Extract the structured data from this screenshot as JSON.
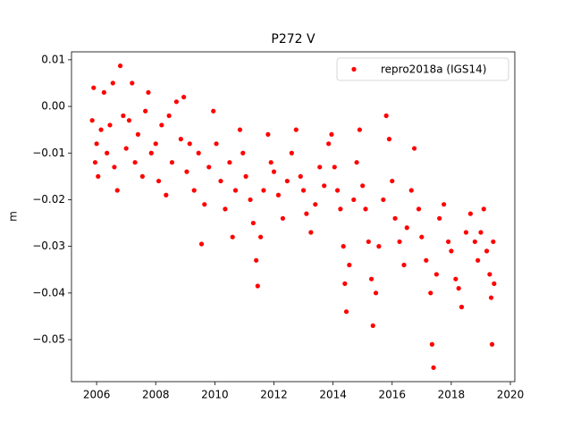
{
  "chart_data": {
    "type": "scatter",
    "title": "P272 V",
    "y_label": "m",
    "xlim": [
      2005.15,
      2020.15
    ],
    "xticks": [
      2006,
      2008,
      2010,
      2012,
      2014,
      2016,
      2018,
      2020
    ],
    "ylim": [
      -0.059,
      0.0117
    ],
    "yticks": [
      {
        "value": 0.01,
        "label": "0.01"
      },
      {
        "value": 0,
        "label": "0.00"
      },
      {
        "value": -0.01,
        "label": "−0.01"
      },
      {
        "value": -0.02,
        "label": "−0.02"
      },
      {
        "value": -0.03,
        "label": "−0.03"
      },
      {
        "value": -0.04,
        "label": "−0.04"
      },
      {
        "value": -0.05,
        "label": "−0.05"
      }
    ],
    "legend_position": "upper right",
    "series": [
      {
        "name": "repro2018a (IGS14)",
        "color": "#ff0000",
        "x": [
          2005.85,
          2005.9,
          2005.95,
          2006.0,
          2006.05,
          2006.15,
          2006.25,
          2006.35,
          2006.45,
          2006.55,
          2006.6,
          2006.7,
          2006.8,
          2006.9,
          2007.0,
          2007.1,
          2007.2,
          2007.3,
          2007.4,
          2007.55,
          2007.65,
          2007.75,
          2007.85,
          2008.0,
          2008.1,
          2008.2,
          2008.35,
          2008.45,
          2008.55,
          2008.7,
          2008.85,
          2008.95,
          2009.05,
          2009.15,
          2009.3,
          2009.45,
          2009.55,
          2009.65,
          2009.8,
          2009.95,
          2010.05,
          2010.2,
          2010.35,
          2010.5,
          2010.6,
          2010.7,
          2010.85,
          2010.95,
          2011.05,
          2011.2,
          2011.3,
          2011.4,
          2011.45,
          2011.55,
          2011.65,
          2011.8,
          2011.9,
          2012.0,
          2012.15,
          2012.3,
          2012.45,
          2012.6,
          2012.75,
          2012.9,
          2013.0,
          2013.1,
          2013.25,
          2013.4,
          2013.55,
          2013.7,
          2013.85,
          2013.95,
          2014.05,
          2014.15,
          2014.25,
          2014.35,
          2014.4,
          2014.45,
          2014.55,
          2014.7,
          2014.8,
          2014.9,
          2015.0,
          2015.1,
          2015.2,
          2015.3,
          2015.35,
          2015.45,
          2015.55,
          2015.7,
          2015.8,
          2015.9,
          2016.0,
          2016.1,
          2016.25,
          2016.4,
          2016.5,
          2016.65,
          2016.75,
          2016.9,
          2017.0,
          2017.15,
          2017.3,
          2017.35,
          2017.4,
          2017.5,
          2017.6,
          2017.75,
          2017.9,
          2018.0,
          2018.15,
          2018.25,
          2018.35,
          2018.5,
          2018.65,
          2018.8,
          2018.9,
          2019.0,
          2019.1,
          2019.2,
          2019.3,
          2019.35,
          2019.38,
          2019.42,
          2019.45
        ],
        "values": [
          -0.003,
          0.004,
          -0.012,
          -0.008,
          -0.015,
          -0.005,
          0.003,
          -0.01,
          -0.004,
          0.005,
          -0.013,
          -0.018,
          0.0087,
          -0.002,
          -0.009,
          -0.003,
          0.005,
          -0.012,
          -0.006,
          -0.015,
          -0.001,
          0.003,
          -0.01,
          -0.008,
          -0.016,
          -0.004,
          -0.019,
          -0.002,
          -0.012,
          0.001,
          -0.007,
          0.002,
          -0.014,
          -0.008,
          -0.018,
          -0.01,
          -0.0295,
          -0.021,
          -0.013,
          -0.001,
          -0.008,
          -0.016,
          -0.022,
          -0.012,
          -0.028,
          -0.018,
          -0.005,
          -0.01,
          -0.015,
          -0.02,
          -0.025,
          -0.033,
          -0.0385,
          -0.028,
          -0.018,
          -0.006,
          -0.012,
          -0.014,
          -0.019,
          -0.024,
          -0.016,
          -0.01,
          -0.005,
          -0.015,
          -0.018,
          -0.023,
          -0.027,
          -0.021,
          -0.013,
          -0.017,
          -0.008,
          -0.006,
          -0.013,
          -0.018,
          -0.022,
          -0.03,
          -0.038,
          -0.044,
          -0.034,
          -0.02,
          -0.012,
          -0.005,
          -0.017,
          -0.022,
          -0.029,
          -0.037,
          -0.047,
          -0.04,
          -0.03,
          -0.02,
          -0.002,
          -0.007,
          -0.016,
          -0.024,
          -0.029,
          -0.034,
          -0.026,
          -0.018,
          -0.009,
          -0.022,
          -0.028,
          -0.033,
          -0.04,
          -0.051,
          -0.056,
          -0.036,
          -0.024,
          -0.021,
          -0.029,
          -0.031,
          -0.037,
          -0.039,
          -0.043,
          -0.027,
          -0.023,
          -0.029,
          -0.033,
          -0.027,
          -0.022,
          -0.031,
          -0.036,
          -0.041,
          -0.051,
          -0.029,
          -0.038
        ]
      }
    ]
  }
}
